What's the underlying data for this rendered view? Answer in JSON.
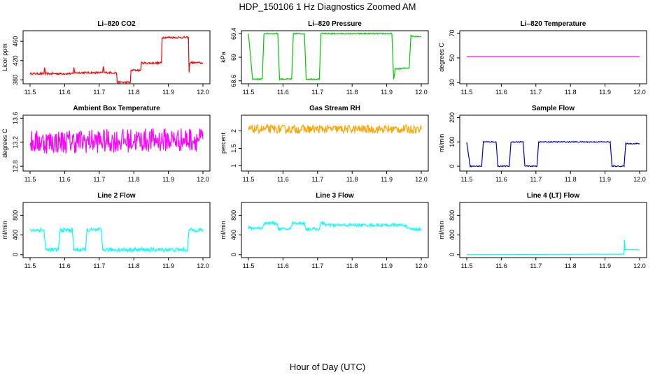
{
  "page": {
    "title": "HDP_150106  1 Hz Diagnostics Zoomed AM",
    "xlabel": "Hour of Day (UTC)"
  },
  "chart_data": [
    {
      "id": "co2",
      "type": "line",
      "title": "Li–820 CO2",
      "ylabel": "Licor ppm",
      "color": "#ff0000",
      "xlim": [
        11.5,
        12.0
      ],
      "ylim": [
        372,
        482
      ],
      "xticks": [
        11.5,
        11.6,
        11.7,
        11.8,
        11.9,
        12.0
      ],
      "yticks": [
        380,
        420,
        460
      ],
      "series": [
        {
          "values": [
            [
              11.5,
              393
            ],
            [
              11.54,
              393
            ],
            [
              11.542,
              407
            ],
            [
              11.544,
              393
            ],
            [
              11.625,
              393
            ],
            [
              11.627,
              407
            ],
            [
              11.629,
              395
            ],
            [
              11.71,
              395
            ],
            [
              11.712,
              409
            ],
            [
              11.714,
              395
            ],
            [
              11.75,
              395
            ],
            [
              11.752,
              375
            ],
            [
              11.79,
              375
            ],
            [
              11.792,
              400
            ],
            [
              11.82,
              400
            ],
            [
              11.822,
              415
            ],
            [
              11.88,
              415
            ],
            [
              11.882,
              468
            ],
            [
              11.958,
              468
            ],
            [
              11.96,
              396
            ],
            [
              11.962,
              416
            ],
            [
              12.0,
              415
            ]
          ],
          "noise": 2
        }
      ]
    },
    {
      "id": "pressure",
      "type": "line",
      "title": "Li–820 Pressure",
      "ylabel": "kPa",
      "color": "#00cc00",
      "xlim": [
        11.5,
        12.0
      ],
      "ylim": [
        68.55,
        69.45
      ],
      "xticks": [
        11.5,
        11.6,
        11.7,
        11.8,
        11.9,
        12.0
      ],
      "yticks": [
        68.6,
        69.0,
        69.4
      ],
      "series": [
        {
          "values": [
            [
              11.5,
              69.4
            ],
            [
              11.512,
              68.63
            ],
            [
              11.54,
              68.63
            ],
            [
              11.545,
              69.4
            ],
            [
              11.585,
              69.4
            ],
            [
              11.59,
              68.63
            ],
            [
              11.625,
              68.63
            ],
            [
              11.63,
              69.4
            ],
            [
              11.662,
              69.4
            ],
            [
              11.667,
              68.63
            ],
            [
              11.705,
              68.63
            ],
            [
              11.71,
              69.4
            ],
            [
              11.915,
              69.4
            ],
            [
              11.92,
              68.63
            ],
            [
              11.925,
              68.8
            ],
            [
              11.965,
              68.82
            ],
            [
              11.97,
              69.36
            ],
            [
              12.0,
              69.35
            ]
          ],
          "noise": 0.01
        }
      ]
    },
    {
      "id": "temperature",
      "type": "line",
      "title": "Li–820 Temperature",
      "ylabel": "degrees C",
      "color": "#ff00ff",
      "xlim": [
        11.5,
        12.0
      ],
      "ylim": [
        29,
        72
      ],
      "xticks": [
        11.5,
        11.6,
        11.7,
        11.8,
        11.9,
        12.0
      ],
      "yticks": [
        30,
        50,
        70
      ],
      "series": [
        {
          "values": [
            [
              11.5,
              51
            ],
            [
              12.0,
              51
            ]
          ],
          "noise": 0
        }
      ]
    },
    {
      "id": "boxtemp",
      "type": "line",
      "title": "Ambient Box Temperature",
      "ylabel": "degrees C",
      "color": "#ff00ff",
      "xlim": [
        11.5,
        12.0
      ],
      "ylim": [
        12.72,
        13.65
      ],
      "xticks": [
        11.5,
        11.6,
        11.7,
        11.8,
        11.9,
        12.0
      ],
      "yticks": [
        12.8,
        13.2,
        13.6
      ],
      "series": [
        {
          "values": [
            [
              11.5,
              13.2
            ],
            [
              12.0,
              13.25
            ]
          ],
          "noise": 0.2
        }
      ]
    },
    {
      "id": "rh",
      "type": "line",
      "title": "Gas Stream RH",
      "ylabel": "percent",
      "color": "#ffa500",
      "xlim": [
        11.5,
        12.0
      ],
      "ylim": [
        0.85,
        2.45
      ],
      "xticks": [
        11.5,
        11.6,
        11.7,
        11.8,
        11.9,
        12.0
      ],
      "yticks": [
        1.0,
        1.5,
        2.0
      ],
      "series": [
        {
          "values": [
            [
              11.5,
              2.05
            ],
            [
              12.0,
              2.05
            ]
          ],
          "noise": 0.12
        }
      ]
    },
    {
      "id": "sampleflow",
      "type": "line",
      "title": "Sample Flow",
      "ylabel": "ml/min",
      "color": "#0000cc",
      "xlim": [
        11.5,
        12.0
      ],
      "ylim": [
        -20,
        210
      ],
      "xticks": [
        11.5,
        11.6,
        11.7,
        11.8,
        11.9,
        12.0
      ],
      "yticks": [
        0,
        100,
        200
      ],
      "series": [
        {
          "values": [
            [
              11.5,
              98
            ],
            [
              11.51,
              0
            ],
            [
              11.543,
              0
            ],
            [
              11.548,
              100
            ],
            [
              11.585,
              100
            ],
            [
              11.59,
              0
            ],
            [
              11.623,
              0
            ],
            [
              11.628,
              100
            ],
            [
              11.663,
              100
            ],
            [
              11.668,
              0
            ],
            [
              11.703,
              0
            ],
            [
              11.708,
              100
            ],
            [
              11.915,
              100
            ],
            [
              11.92,
              0
            ],
            [
              11.955,
              0
            ],
            [
              11.96,
              93
            ],
            [
              12.0,
              93
            ]
          ],
          "noise": 2
        }
      ]
    },
    {
      "id": "line2",
      "type": "line",
      "title": "Line 2 Flow",
      "ylabel": "ml/min",
      "color": "#00ffff",
      "xlim": [
        11.5,
        12.0
      ],
      "ylim": [
        -60,
        1060
      ],
      "xticks": [
        11.5,
        11.6,
        11.7,
        11.8,
        11.9,
        12.0
      ],
      "yticks": [
        0,
        400,
        800
      ],
      "series": [
        {
          "values": [
            [
              11.5,
              500
            ],
            [
              11.54,
              500
            ],
            [
              11.545,
              100
            ],
            [
              11.582,
              100
            ],
            [
              11.587,
              500
            ],
            [
              11.622,
              500
            ],
            [
              11.627,
              100
            ],
            [
              11.66,
              100
            ],
            [
              11.665,
              500
            ],
            [
              11.705,
              500
            ],
            [
              11.71,
              100
            ],
            [
              11.955,
              100
            ],
            [
              11.96,
              500
            ],
            [
              12.0,
              500
            ]
          ],
          "noise": 40
        }
      ]
    },
    {
      "id": "line3",
      "type": "line",
      "title": "Line 3 Flow",
      "ylabel": "ml/min",
      "color": "#00ffff",
      "xlim": [
        11.5,
        12.0
      ],
      "ylim": [
        -60,
        1060
      ],
      "xticks": [
        11.5,
        11.6,
        11.7,
        11.8,
        11.9,
        12.0
      ],
      "yticks": [
        0,
        400,
        800
      ],
      "series": [
        {
          "values": [
            [
              11.5,
              540
            ],
            [
              11.54,
              540
            ],
            [
              11.545,
              640
            ],
            [
              11.582,
              640
            ],
            [
              11.587,
              520
            ],
            [
              11.622,
              520
            ],
            [
              11.627,
              640
            ],
            [
              11.662,
              640
            ],
            [
              11.667,
              520
            ],
            [
              11.705,
              520
            ],
            [
              11.71,
              640
            ],
            [
              11.72,
              640
            ],
            [
              11.725,
              600
            ],
            [
              11.955,
              600
            ],
            [
              11.96,
              520
            ],
            [
              12.0,
              520
            ]
          ],
          "noise": 30
        }
      ]
    },
    {
      "id": "line4",
      "type": "line",
      "title": "Line 4 (LT) Flow",
      "ylabel": "ml/min",
      "color": "#00ffff",
      "xlim": [
        11.5,
        12.0
      ],
      "ylim": [
        -60,
        1060
      ],
      "xticks": [
        11.5,
        11.6,
        11.7,
        11.8,
        11.9,
        12.0
      ],
      "yticks": [
        0,
        400,
        800
      ],
      "series": [
        {
          "values": [
            [
              11.5,
              0
            ],
            [
              11.955,
              10
            ],
            [
              11.956,
              300
            ],
            [
              11.958,
              100
            ],
            [
              12.0,
              100
            ]
          ],
          "noise": 3
        }
      ]
    }
  ]
}
